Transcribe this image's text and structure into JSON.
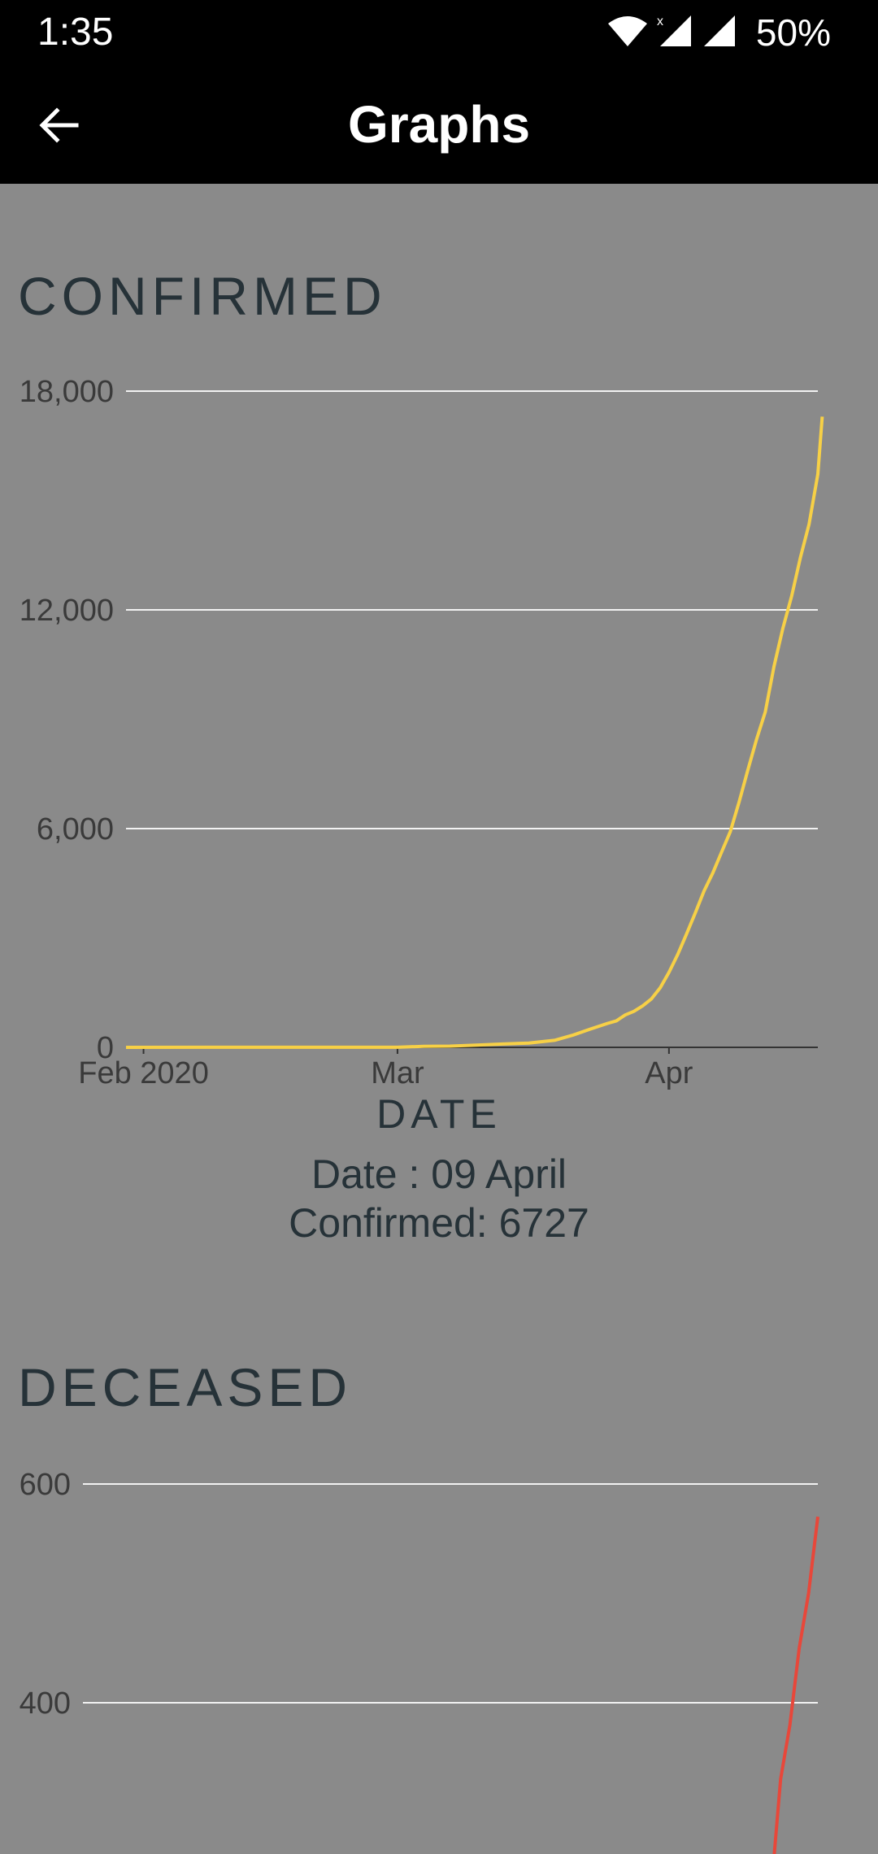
{
  "status_bar": {
    "time": "1:35",
    "battery": "50%",
    "icons": [
      "wifi-icon",
      "cell-signal-icon",
      "cell-signal-icon"
    ]
  },
  "app_bar": {
    "title": "Graphs",
    "back_icon": "arrow-left-icon"
  },
  "colors": {
    "confirmed_line": "#f7d046",
    "deceased_line": "#e8473a",
    "background": "#8a8a8a",
    "bar": "#000000"
  },
  "confirmed": {
    "title": "CONFIRMED",
    "xaxis_title": "DATE",
    "tooltip": {
      "date_text": "Date : 09 April",
      "value_text": "Confirmed: 6727"
    }
  },
  "deceased": {
    "title": "DECEASED"
  },
  "chart_data": [
    {
      "type": "line",
      "title": "CONFIRMED",
      "xlabel": "DATE",
      "ylabel": "",
      "ylim": [
        0,
        18000
      ],
      "yticks": [
        "0",
        "6,000",
        "12,000",
        "18,000"
      ],
      "yticks_values": [
        0,
        6000,
        12000,
        18000
      ],
      "xticks": [
        {
          "date": "2020-02-01",
          "label": "Feb 2020"
        },
        {
          "date": "2020-03-01",
          "label": "Mar"
        },
        {
          "date": "2020-04-01",
          "label": "Apr"
        }
      ],
      "xlim": [
        "2020-01-30",
        "2020-04-18"
      ],
      "grid": true,
      "series": [
        {
          "color": "#f7d046",
          "points": [
            [
              "2020-01-30",
              1
            ],
            [
              "2020-02-10",
              3
            ],
            [
              "2020-02-20",
              3
            ],
            [
              "2020-03-01",
              3
            ],
            [
              "2020-03-04",
              28
            ],
            [
              "2020-03-07",
              34
            ],
            [
              "2020-03-10",
              62
            ],
            [
              "2020-03-13",
              91
            ],
            [
              "2020-03-16",
              119
            ],
            [
              "2020-03-19",
              196
            ],
            [
              "2020-03-21",
              332
            ],
            [
              "2020-03-23",
              499
            ],
            [
              "2020-03-25",
              657
            ],
            [
              "2020-03-26",
              727
            ],
            [
              "2020-03-27",
              887
            ],
            [
              "2020-03-28",
              987
            ],
            [
              "2020-03-29",
              1139
            ],
            [
              "2020-03-30",
              1329
            ],
            [
              "2020-03-31",
              1635
            ],
            [
              "2020-04-01",
              2059
            ],
            [
              "2020-04-02",
              2545
            ],
            [
              "2020-04-03",
              3105
            ],
            [
              "2020-04-04",
              3684
            ],
            [
              "2020-04-05",
              4289
            ],
            [
              "2020-04-06",
              4778
            ],
            [
              "2020-04-07",
              5351
            ],
            [
              "2020-04-08",
              5916
            ],
            [
              "2020-04-09",
              6727
            ],
            [
              "2020-04-10",
              7599
            ],
            [
              "2020-04-11",
              8446
            ],
            [
              "2020-04-12",
              9205
            ],
            [
              "2020-04-13",
              10453
            ],
            [
              "2020-04-14",
              11487
            ],
            [
              "2020-04-15",
              12371
            ],
            [
              "2020-04-16",
              13430
            ],
            [
              "2020-04-17",
              14352
            ],
            [
              "2020-04-18",
              15722
            ],
            [
              "2020-04-18T12:00",
              17300
            ]
          ]
        }
      ]
    },
    {
      "type": "line",
      "title": "DECEASED",
      "ylim": [
        200,
        600
      ],
      "yticks": [
        "400",
        "600"
      ],
      "yticks_values": [
        400,
        600
      ],
      "xlim": [
        "2020-01-30",
        "2020-04-18"
      ],
      "grid": true,
      "series": [
        {
          "color": "#e8473a",
          "points": [
            [
              "2020-04-13",
              230
            ],
            [
              "2020-04-14",
              330
            ],
            [
              "2020-04-15",
              380
            ],
            [
              "2020-04-16",
              450
            ],
            [
              "2020-04-17",
              500
            ],
            [
              "2020-04-18",
              570
            ]
          ]
        }
      ]
    }
  ]
}
